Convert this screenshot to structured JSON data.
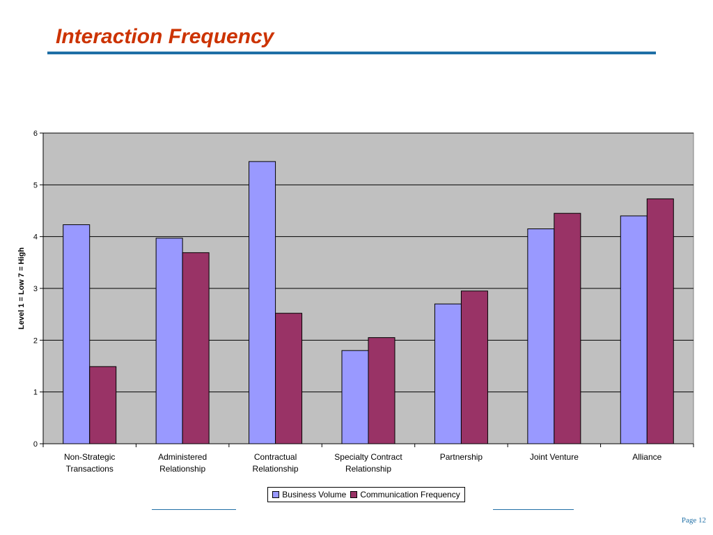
{
  "slide": {
    "title": "Interaction Frequency",
    "page_label": "Page 12"
  },
  "colors": {
    "title": "#cc3300",
    "rule": "#1f6fa6",
    "plot_background": "#c0c0c0"
  },
  "chart_data": {
    "type": "bar",
    "title": "",
    "xlabel": "",
    "ylabel": "Level 1 = Low 7 = High",
    "ylim": [
      0,
      6
    ],
    "yticks": [
      0,
      1,
      2,
      3,
      4,
      5,
      6
    ],
    "grid": true,
    "legend_position": "bottom",
    "categories": [
      [
        "Non-Strategic",
        "Transactions"
      ],
      [
        "Administered",
        "Relationship"
      ],
      [
        "Contractual",
        "Relationship"
      ],
      [
        "Specialty Contract",
        "Relationship"
      ],
      [
        "Partnership"
      ],
      [
        "Joint Venture"
      ],
      [
        "Alliance"
      ]
    ],
    "series": [
      {
        "name": "Business Volume",
        "color": "#9999ff",
        "values": [
          4.23,
          3.97,
          5.45,
          1.8,
          2.7,
          4.15,
          4.4
        ]
      },
      {
        "name": "Communication Frequency",
        "color": "#993366",
        "values": [
          1.49,
          3.69,
          2.52,
          2.05,
          2.95,
          4.45,
          4.73
        ]
      }
    ]
  }
}
